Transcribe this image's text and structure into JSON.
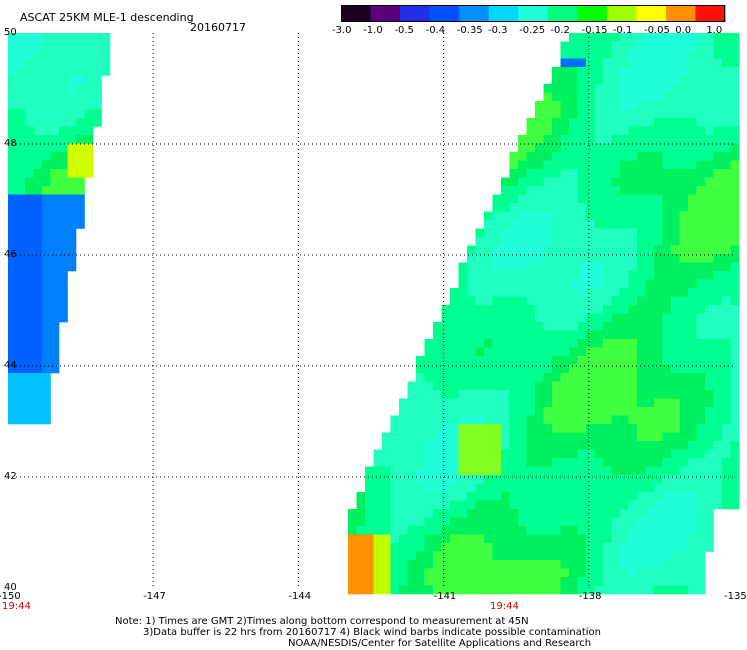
{
  "header": {
    "title": "ASCAT 25KM MLE-1 descending",
    "date": "20160717"
  },
  "colorbar": {
    "labels": [
      "-3.0",
      "-1.0",
      "-0.5",
      "-0.4",
      "-0.35",
      "-0.3",
      "-0.25",
      "-0.2",
      "-0.15",
      "-0.1",
      "-0.05",
      "0.0",
      "1.0"
    ],
    "colors": [
      "#1c0020",
      "#5a0078",
      "#2030e8",
      "#0050ff",
      "#0090ff",
      "#00d8ff",
      "#20ffd8",
      "#00ff80",
      "#00ff00",
      "#a0ff00",
      "#ffff00",
      "#ff9000",
      "#ff1000"
    ]
  },
  "map": {
    "lon_range": [
      -150,
      -135
    ],
    "lat_range": [
      40,
      50
    ],
    "lon_labels": [
      "-150",
      "-147",
      "-144",
      "-141",
      "-138",
      "-135"
    ],
    "lat_labels": [
      "50",
      "48",
      "46",
      "44",
      "42",
      "40"
    ],
    "time_labels": [
      "19:44",
      "19:44"
    ]
  },
  "notes": {
    "line1": "Note: 1) Times are GMT 2)Times along bottom correspond to measurement at 45N",
    "line2": "3)Data buffer is 22 hrs from 20160717 4) Black wind barbs indicate possible contamination",
    "line3": "NOAA/NESDIS/Center for Satellite Applications and Research"
  }
}
